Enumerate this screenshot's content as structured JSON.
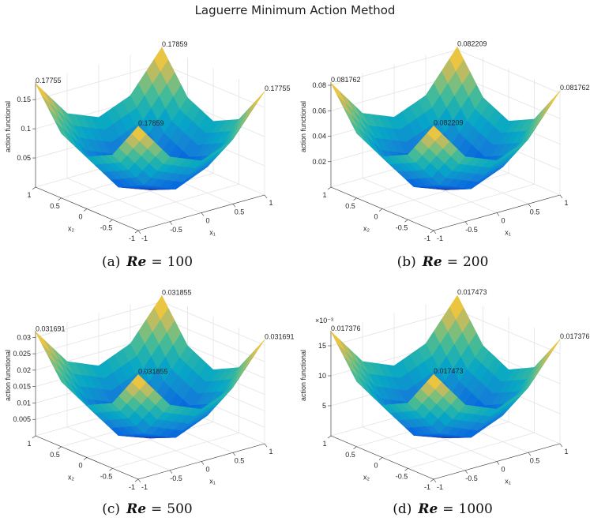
{
  "title": "Laguerre Minimum Action Method",
  "chart_data": [
    {
      "type": "surface",
      "colormap": "parula",
      "grid": true,
      "zlabel": "action functional",
      "xlabel": "x₁",
      "ylabel": "x₂",
      "x1": [
        -1,
        -0.5,
        0,
        0.5,
        1
      ],
      "x2": [
        -1,
        -0.5,
        0,
        0.5,
        1
      ],
      "xticks": [
        -1,
        -0.5,
        0,
        0.5,
        1
      ],
      "yticks": [
        -1,
        -0.5,
        0,
        0.5,
        1
      ],
      "zlim": [
        0,
        0.18
      ],
      "zticks": [
        0.05,
        0.1,
        0.15
      ],
      "z": [
        [
          0.17859,
          0.111,
          0.089,
          0.111,
          0.17755
        ],
        [
          0.111,
          0.045,
          0.022,
          0.045,
          0.111
        ],
        [
          0.089,
          0.022,
          0.002,
          0.022,
          0.089
        ],
        [
          0.111,
          0.045,
          0.022,
          0.045,
          0.111
        ],
        [
          0.17755,
          0.111,
          0.089,
          0.111,
          0.17859
        ]
      ],
      "caption": {
        "label": "(a)",
        "variable": "Re",
        "relation": "=",
        "value": 100
      }
    },
    {
      "type": "surface",
      "colormap": "parula",
      "grid": true,
      "zlabel": "action functional",
      "xlabel": "x₁",
      "ylabel": "x₂",
      "x1": [
        -1,
        -0.5,
        0,
        0.5,
        1
      ],
      "x2": [
        -1,
        -0.5,
        0,
        0.5,
        1
      ],
      "xticks": [
        -1,
        -0.5,
        0,
        0.5,
        1
      ],
      "yticks": [
        -1,
        -0.5,
        0,
        0.5,
        1
      ],
      "zlim": [
        0,
        0.0825
      ],
      "zticks": [
        0.02,
        0.04,
        0.06,
        0.08
      ],
      "z": [
        [
          0.082209,
          0.051,
          0.041,
          0.051,
          0.081762
        ],
        [
          0.051,
          0.0205,
          0.0103,
          0.0205,
          0.051
        ],
        [
          0.041,
          0.0103,
          0.001,
          0.0103,
          0.041
        ],
        [
          0.051,
          0.0205,
          0.0103,
          0.0205,
          0.051
        ],
        [
          0.081762,
          0.051,
          0.041,
          0.051,
          0.082209
        ]
      ],
      "caption": {
        "label": "(b)",
        "variable": "Re",
        "relation": "=",
        "value": 200
      }
    },
    {
      "type": "surface",
      "colormap": "parula",
      "grid": true,
      "zlabel": "action functional",
      "xlabel": "x₁",
      "ylabel": "x₂",
      "x1": [
        -1,
        -0.5,
        0,
        0.5,
        1
      ],
      "x2": [
        -1,
        -0.5,
        0,
        0.5,
        1
      ],
      "xticks": [
        -1,
        -0.5,
        0,
        0.5,
        1
      ],
      "yticks": [
        -1,
        -0.5,
        0,
        0.5,
        1
      ],
      "zlim": [
        0,
        0.032
      ],
      "zticks": [
        0.005,
        0.01,
        0.015,
        0.02,
        0.025,
        0.03
      ],
      "z": [
        [
          0.031855,
          0.0199,
          0.0159,
          0.0199,
          0.031691
        ],
        [
          0.0199,
          0.008,
          0.004,
          0.008,
          0.0199
        ],
        [
          0.0159,
          0.004,
          0.0005,
          0.004,
          0.0159
        ],
        [
          0.0199,
          0.008,
          0.004,
          0.008,
          0.0199
        ],
        [
          0.031691,
          0.0199,
          0.0159,
          0.0199,
          0.031855
        ]
      ],
      "caption": {
        "label": "(c)",
        "variable": "Re",
        "relation": "=",
        "value": 500
      }
    },
    {
      "type": "surface",
      "colormap": "parula",
      "grid": true,
      "zlabel": "action functional",
      "xlabel": "x₁",
      "ylabel": "x₂",
      "x1": [
        -1,
        -0.5,
        0,
        0.5,
        1
      ],
      "x2": [
        -1,
        -0.5,
        0,
        0.5,
        1
      ],
      "xticks": [
        -1,
        -0.5,
        0,
        0.5,
        1
      ],
      "yticks": [
        -1,
        -0.5,
        0,
        0.5,
        1
      ],
      "zlim": [
        0,
        0.0175
      ],
      "zexponent": "×10⁻³",
      "zticks": [
        {
          "value": 0.005,
          "label": "5"
        },
        {
          "value": 0.01,
          "label": "10"
        },
        {
          "value": 0.015,
          "label": "15"
        }
      ],
      "z": [
        [
          0.017473,
          0.0109,
          0.0087,
          0.0109,
          0.017376
        ],
        [
          0.0109,
          0.0044,
          0.0022,
          0.0044,
          0.0109
        ],
        [
          0.0087,
          0.0022,
          0.0003,
          0.0022,
          0.0087
        ],
        [
          0.0109,
          0.0044,
          0.0022,
          0.0044,
          0.0109
        ],
        [
          0.017376,
          0.0109,
          0.0087,
          0.0109,
          0.017473
        ]
      ],
      "caption": {
        "label": "(d)",
        "variable": "Re",
        "relation": "=",
        "value": 1000
      }
    }
  ]
}
